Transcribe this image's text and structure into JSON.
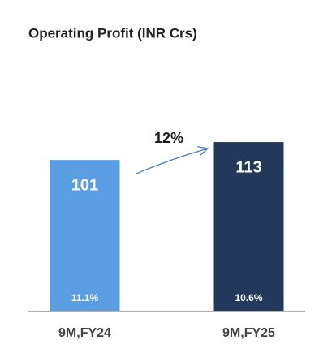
{
  "chart_data": {
    "type": "bar",
    "title": "Operating Profit (INR Crs)",
    "categories": [
      "9M,FY24",
      "9M,FY25"
    ],
    "values": [
      101,
      113
    ],
    "colors": [
      "#5b9de3",
      "#22395c"
    ],
    "margins": [
      "11.1%",
      "10.6%"
    ],
    "annotation": "12%"
  }
}
